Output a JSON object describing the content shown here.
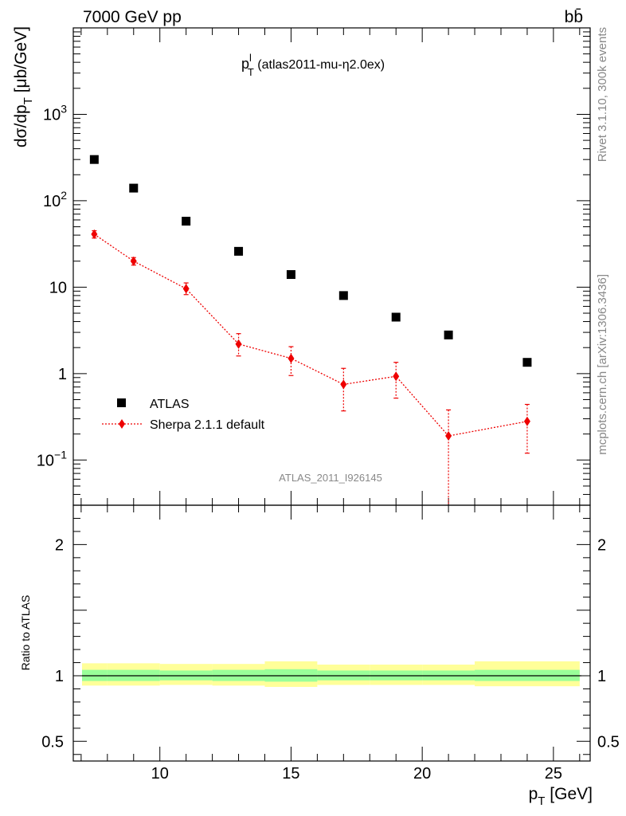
{
  "header": {
    "left": "7000 GeV pp",
    "right": "bb̄"
  },
  "side_labels": {
    "rivet": "Rivet 3.1.10,  300k events",
    "mcplots": "mcplots.cern.ch [arXiv:1306.3436]"
  },
  "chart_data": {
    "type": "scatter",
    "title": {
      "main": "p",
      "sup": "l",
      "sub": "T",
      "rest": " (atlas2011-mu-η2.0ex)"
    },
    "analysis_id": "ATLAS_2011_I926145",
    "xlabel": {
      "main": "p",
      "sub": "T",
      "rest": " [GeV]"
    },
    "ylabel": {
      "pre": "dσ/dp",
      "sub": "T",
      "post": " [μb/GeV]"
    },
    "ratio_ylabel": "Ratio to ATLAS",
    "xlim": [
      6.7,
      26.4
    ],
    "ylim": [
      0.03,
      10000
    ],
    "yscale": "log",
    "ratio_ylim": [
      0.35,
      2.3
    ],
    "x_ticks": [
      {
        "value": 10,
        "label": "10"
      },
      {
        "value": 15,
        "label": "15"
      },
      {
        "value": 20,
        "label": "20"
      },
      {
        "value": 25,
        "label": "25"
      }
    ],
    "y_ticks": [
      {
        "value": 0.1,
        "base": "10",
        "exp": "−1"
      },
      {
        "value": 1,
        "base": "1",
        "exp": ""
      },
      {
        "value": 10,
        "base": "10",
        "exp": ""
      },
      {
        "value": 100,
        "base": "10",
        "exp": "2"
      },
      {
        "value": 1000,
        "base": "10",
        "exp": "3"
      }
    ],
    "ratio_ticks": [
      {
        "value": 0.5,
        "label": "0.5"
      },
      {
        "value": 1,
        "label": "1"
      },
      {
        "value": 2,
        "label": "2"
      }
    ],
    "legend_position": "bottom-left",
    "series": [
      {
        "name": "ATLAS",
        "color": "#000000",
        "marker": "square",
        "x": [
          7.5,
          9,
          11,
          13,
          15,
          17,
          19,
          21,
          24
        ],
        "y": [
          300,
          140,
          58,
          26,
          14,
          8,
          4.5,
          2.8,
          1.35
        ]
      },
      {
        "name": "Sherpa 2.1.1 default",
        "color": "#ee0000",
        "marker": "diamond",
        "line": "dotted",
        "x": [
          7.5,
          9,
          11,
          13,
          15,
          17,
          19,
          21,
          24
        ],
        "y": [
          41,
          20,
          9.6,
          2.2,
          1.5,
          0.75,
          0.93,
          0.19,
          0.28
        ],
        "y_low": [
          37,
          18,
          8.2,
          1.6,
          0.95,
          0.37,
          0.52,
          0.03,
          0.12
        ],
        "y_high": [
          45,
          22,
          11.2,
          2.9,
          2.05,
          1.15,
          1.35,
          0.38,
          0.44
        ]
      }
    ],
    "ratio_bands": {
      "edges": [
        7,
        8,
        10,
        12,
        14,
        16,
        18,
        20,
        22,
        26
      ],
      "inner_low": [
        0.96,
        0.96,
        0.965,
        0.96,
        0.955,
        0.965,
        0.965,
        0.965,
        0.96
      ],
      "inner_high": [
        1.045,
        1.045,
        1.04,
        1.045,
        1.05,
        1.04,
        1.04,
        1.04,
        1.045
      ],
      "outer_low": [
        0.925,
        0.925,
        0.93,
        0.925,
        0.915,
        0.93,
        0.93,
        0.93,
        0.92
      ],
      "outer_high": [
        1.095,
        1.095,
        1.09,
        1.09,
        1.11,
        1.085,
        1.085,
        1.085,
        1.11
      ],
      "inner_color": "#99ff99",
      "outer_color": "#ffff99"
    }
  }
}
